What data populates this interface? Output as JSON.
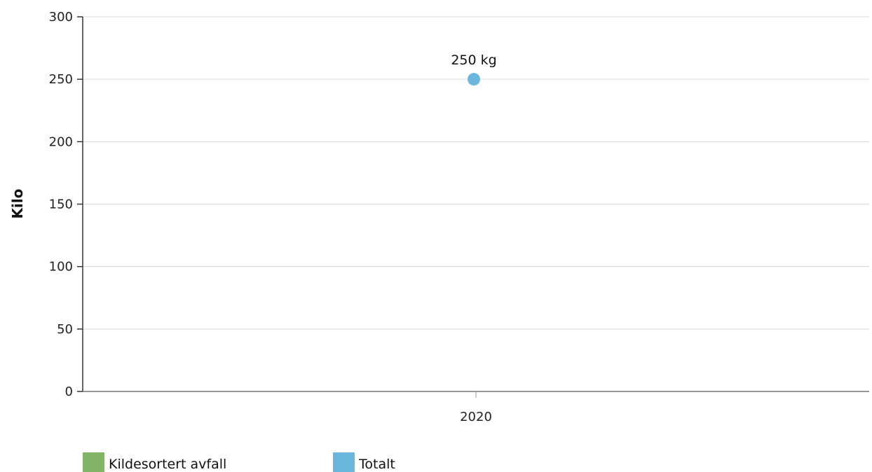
{
  "chart_data": {
    "type": "scatter",
    "title": "",
    "xlabel": "",
    "ylabel": "Kilo",
    "categories": [
      "2020"
    ],
    "ylim": [
      0,
      300
    ],
    "yticks": [
      0,
      50,
      100,
      150,
      200,
      250,
      300
    ],
    "grid": true,
    "legend_position": "bottom-left",
    "series": [
      {
        "name": "Kildesortert avfall",
        "color": "#82b366",
        "values": [
          null
        ]
      },
      {
        "name": "Totalt",
        "color": "#6bb6dc",
        "values": [
          250
        ],
        "data_labels": [
          "250 kg"
        ]
      }
    ]
  }
}
